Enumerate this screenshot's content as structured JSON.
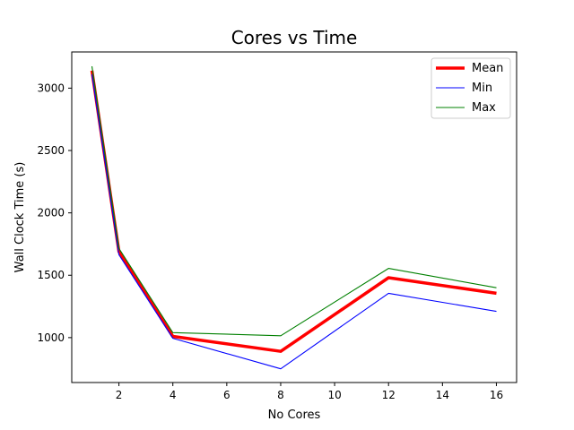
{
  "chart_data": {
    "type": "line",
    "title": "Cores vs Time",
    "xlabel": "No Cores",
    "ylabel": "Wall Clock Time (s)",
    "x": [
      1,
      2,
      4,
      8,
      12,
      16
    ],
    "series": [
      {
        "name": "Mean",
        "values": [
          3140,
          1690,
          1010,
          890,
          1480,
          1355
        ],
        "color": "#ff0000"
      },
      {
        "name": "Min",
        "values": [
          3110,
          1665,
          995,
          750,
          1355,
          1210
        ],
        "color": "#0000ff"
      },
      {
        "name": "Max",
        "values": [
          3175,
          1715,
          1040,
          1015,
          1555,
          1400
        ],
        "color": "#008000"
      }
    ],
    "xlim": [
      0.25,
      16.75
    ],
    "ylim": [
      640,
      3290
    ],
    "xticks": [
      2,
      4,
      6,
      8,
      10,
      12,
      14,
      16
    ],
    "yticks": [
      1000,
      1500,
      2000,
      2500,
      3000
    ],
    "grid": false,
    "legend_position": "top-right"
  }
}
